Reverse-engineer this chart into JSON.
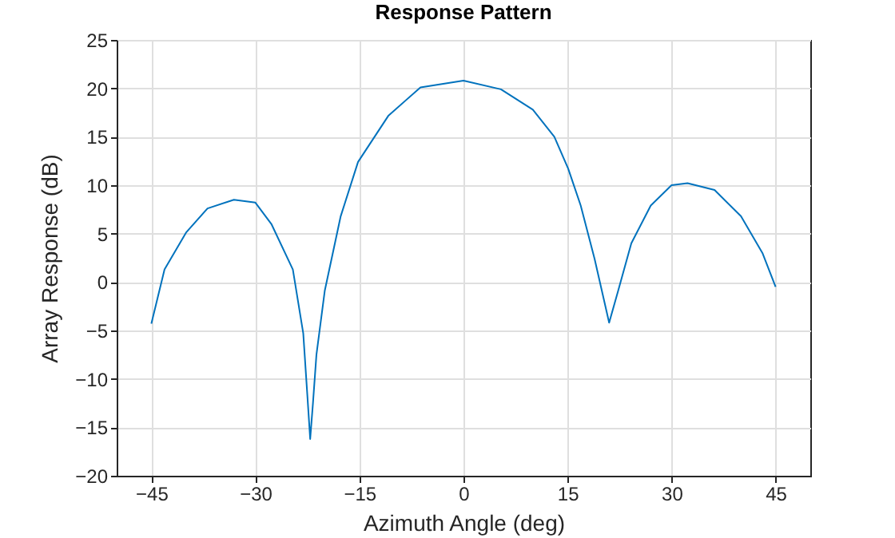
{
  "chart_data": {
    "type": "line",
    "title": "Response Pattern",
    "xlabel": "Azimuth Angle (deg)",
    "ylabel": "Array Response (dB)",
    "xlim": [
      -50,
      50
    ],
    "ylim": [
      -20,
      25
    ],
    "xticks": [
      -45,
      -30,
      -15,
      0,
      15,
      30,
      45
    ],
    "yticks": [
      -20,
      -15,
      -10,
      -5,
      0,
      5,
      10,
      15,
      20,
      25
    ],
    "grid": true,
    "line_style": "solid",
    "marker": "none",
    "series": [
      {
        "color": "#0072bd",
        "x": [
          -45,
          -43.1,
          -40.0,
          -36.9,
          -33.1,
          -30.0,
          -27.7,
          -24.6,
          -23.1,
          -22.5,
          -22.1,
          -21.7,
          -21.2,
          -20.0,
          -17.7,
          -15.2,
          -10.8,
          -6.2,
          0,
          5.4,
          10.0,
          13.1,
          15.1,
          16.9,
          18.9,
          21.0,
          22.3,
          24.2,
          27.0,
          30.0,
          32.3,
          36.2,
          40.0,
          43.1,
          45.0
        ],
        "values": [
          -4.3,
          1.3,
          5.1,
          7.6,
          8.5,
          8.2,
          6.0,
          1.3,
          -5.3,
          -11.8,
          -16.2,
          -12.5,
          -7.5,
          -0.9,
          6.8,
          12.4,
          17.2,
          20.1,
          20.8,
          19.9,
          17.8,
          15.0,
          11.7,
          7.9,
          2.4,
          -4.2,
          -0.9,
          4.0,
          7.9,
          10.0,
          10.2,
          9.5,
          6.8,
          3.0,
          -0.5
        ]
      }
    ]
  }
}
